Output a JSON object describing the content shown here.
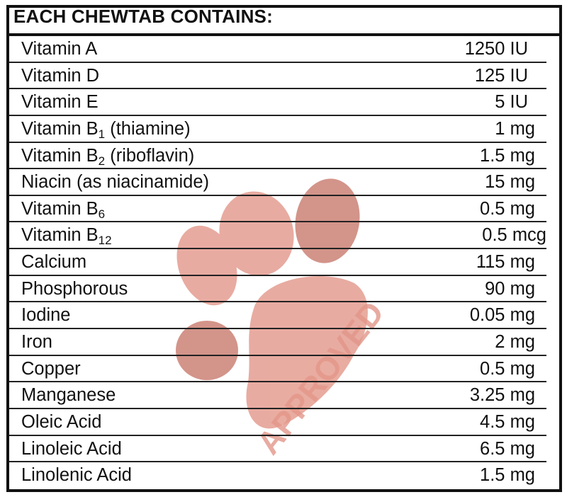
{
  "header": "EACH CHEWTAB CONTAINS:",
  "stamp": {
    "text": "APPROVED",
    "icon": "paw-print-icon",
    "color": "#e3978a"
  },
  "rows": [
    {
      "name": "Vitamin A",
      "sub": "",
      "suffix": "",
      "value": "1250 IU"
    },
    {
      "name": "Vitamin D",
      "sub": "",
      "suffix": "",
      "value": "125 IU"
    },
    {
      "name": "Vitamin E",
      "sub": "",
      "suffix": "",
      "value": "5 IU"
    },
    {
      "name": "Vitamin B",
      "sub": "1",
      "suffix": " (thiamine)",
      "value": "1 mg"
    },
    {
      "name": "Vitamin B",
      "sub": "2",
      "suffix": " (riboflavin)",
      "value": "1.5 mg"
    },
    {
      "name": "Niacin (as niacinamide)",
      "sub": "",
      "suffix": "",
      "value": "15 mg"
    },
    {
      "name": "Vitamin B",
      "sub": "6",
      "suffix": "",
      "value": "0.5 mg"
    },
    {
      "name": "Vitamin B",
      "sub": "12",
      "suffix": "",
      "value": "0.5 mcg"
    },
    {
      "name": "Calcium",
      "sub": "",
      "suffix": "",
      "value": "115 mg"
    },
    {
      "name": "Phosphorous",
      "sub": "",
      "suffix": "",
      "value": "90 mg"
    },
    {
      "name": "Iodine",
      "sub": "",
      "suffix": "",
      "value": "0.05 mg"
    },
    {
      "name": "Iron",
      "sub": "",
      "suffix": "",
      "value": "2 mg"
    },
    {
      "name": "Copper",
      "sub": "",
      "suffix": "",
      "value": "0.5 mg"
    },
    {
      "name": "Manganese",
      "sub": "",
      "suffix": "",
      "value": "3.25 mg"
    },
    {
      "name": "Oleic Acid",
      "sub": "",
      "suffix": "",
      "value": "4.5 mg"
    },
    {
      "name": "Linoleic Acid",
      "sub": "",
      "suffix": "",
      "value": "6.5 mg"
    },
    {
      "name": "Linolenic Acid",
      "sub": "",
      "suffix": "",
      "value": "1.5 mg"
    }
  ]
}
